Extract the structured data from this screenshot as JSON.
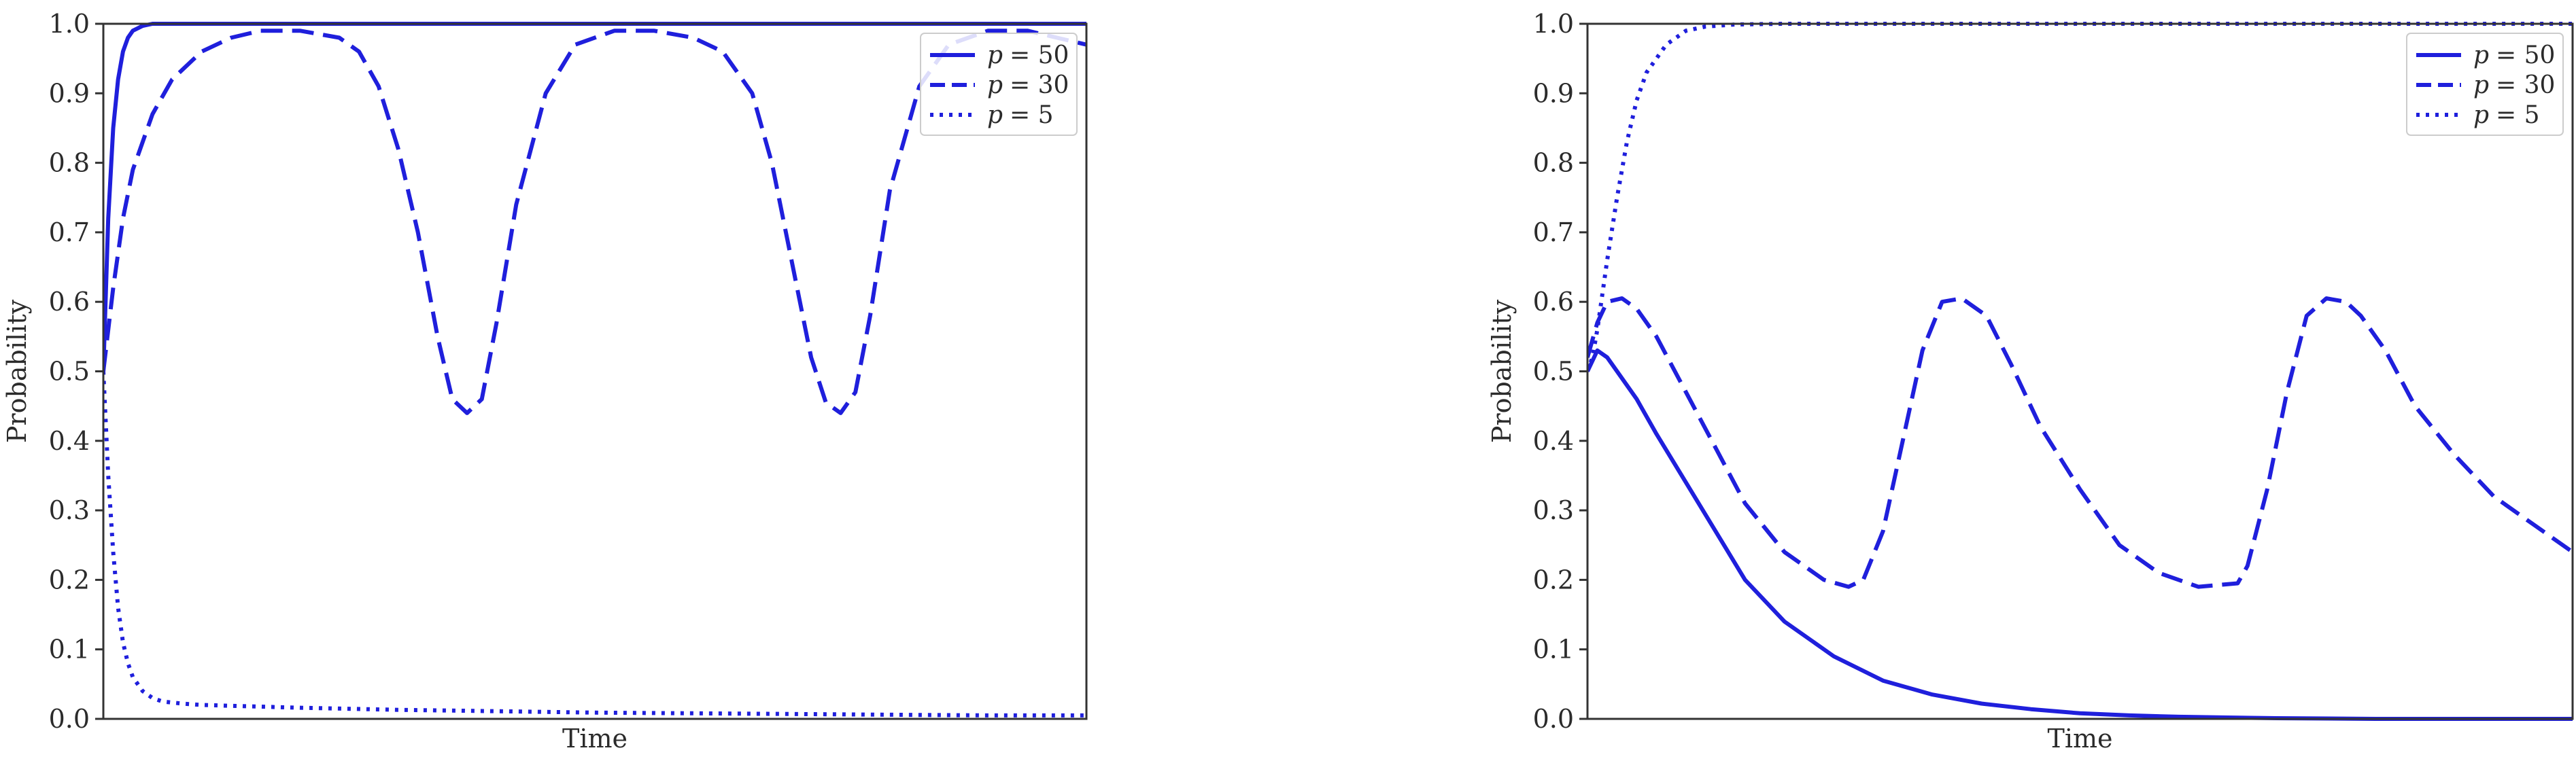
{
  "colors": {
    "line": "#1f1fdc",
    "axes": "#333333",
    "legend_border": "#cccccc"
  },
  "chart_data": [
    {
      "type": "line",
      "title": "",
      "xlabel": "Time",
      "ylabel": "Probability",
      "xlim": [
        0,
        1
      ],
      "ylim": [
        0.0,
        1.0
      ],
      "yticks": [
        "0.0",
        "0.1",
        "0.2",
        "0.3",
        "0.4",
        "0.5",
        "0.6",
        "0.7",
        "0.8",
        "0.9",
        "1.0"
      ],
      "xticks": [],
      "grid": false,
      "legend": "top-right",
      "series": [
        {
          "name": "p = 50",
          "name_var": "p",
          "name_value": "= 50",
          "style": "solid",
          "x": [
            0,
            0.005,
            0.01,
            0.015,
            0.02,
            0.025,
            0.03,
            0.04,
            0.05,
            0.06,
            1.0
          ],
          "y": [
            0.5,
            0.72,
            0.85,
            0.92,
            0.96,
            0.98,
            0.99,
            0.997,
            1.0,
            1.0,
            1.0
          ]
        },
        {
          "name": "p = 30",
          "name_var": "p",
          "name_value": "= 30",
          "style": "dashed",
          "x": [
            0,
            0.01,
            0.02,
            0.03,
            0.05,
            0.07,
            0.1,
            0.13,
            0.16,
            0.2,
            0.24,
            0.26,
            0.28,
            0.3,
            0.32,
            0.34,
            0.355,
            0.37,
            0.385,
            0.4,
            0.42,
            0.45,
            0.48,
            0.52,
            0.56,
            0.6,
            0.63,
            0.66,
            0.68,
            0.7,
            0.72,
            0.735,
            0.75,
            0.765,
            0.78,
            0.8,
            0.83,
            0.86,
            0.9,
            0.94,
            0.97,
            1.0
          ],
          "y": [
            0.5,
            0.62,
            0.72,
            0.79,
            0.87,
            0.92,
            0.96,
            0.98,
            0.99,
            0.99,
            0.98,
            0.96,
            0.91,
            0.82,
            0.7,
            0.55,
            0.46,
            0.44,
            0.46,
            0.57,
            0.74,
            0.9,
            0.97,
            0.99,
            0.99,
            0.98,
            0.96,
            0.9,
            0.8,
            0.66,
            0.52,
            0.455,
            0.44,
            0.47,
            0.58,
            0.76,
            0.91,
            0.97,
            0.99,
            0.99,
            0.98,
            0.97
          ]
        },
        {
          "name": "p = 5",
          "name_var": "p",
          "name_value": "= 5",
          "style": "dotted",
          "x": [
            0,
            0.005,
            0.01,
            0.015,
            0.02,
            0.025,
            0.03,
            0.04,
            0.05,
            0.06,
            0.08,
            0.1,
            0.15,
            0.2,
            0.3,
            0.4,
            0.5,
            0.6,
            0.7,
            0.8,
            0.9,
            1.0
          ],
          "y": [
            0.5,
            0.35,
            0.24,
            0.16,
            0.11,
            0.08,
            0.06,
            0.04,
            0.03,
            0.025,
            0.022,
            0.02,
            0.018,
            0.016,
            0.013,
            0.011,
            0.009,
            0.008,
            0.007,
            0.006,
            0.005,
            0.005
          ]
        }
      ]
    },
    {
      "type": "line",
      "title": "",
      "xlabel": "Time",
      "ylabel": "Probability",
      "xlim": [
        0,
        1
      ],
      "ylim": [
        0.0,
        1.0
      ],
      "yticks": [
        "0.0",
        "0.1",
        "0.2",
        "0.3",
        "0.4",
        "0.5",
        "0.6",
        "0.7",
        "0.8",
        "0.9",
        "1.0"
      ],
      "xticks": [],
      "grid": false,
      "legend": "top-right",
      "series": [
        {
          "name": "p = 50",
          "name_var": "p",
          "name_value": "= 50",
          "style": "solid",
          "x": [
            0,
            0.01,
            0.02,
            0.03,
            0.05,
            0.07,
            0.1,
            0.13,
            0.16,
            0.2,
            0.25,
            0.3,
            0.35,
            0.4,
            0.45,
            0.5,
            0.55,
            0.6,
            0.65,
            0.7,
            0.8,
            0.9,
            1.0
          ],
          "y": [
            0.5,
            0.53,
            0.52,
            0.5,
            0.46,
            0.41,
            0.34,
            0.27,
            0.2,
            0.14,
            0.09,
            0.055,
            0.035,
            0.022,
            0.014,
            0.008,
            0.005,
            0.003,
            0.002,
            0.001,
            0.0,
            0.0,
            0.0
          ]
        },
        {
          "name": "p = 30",
          "name_var": "p",
          "name_value": "= 30",
          "style": "dashed",
          "x": [
            0,
            0.01,
            0.02,
            0.035,
            0.05,
            0.07,
            0.1,
            0.13,
            0.16,
            0.2,
            0.24,
            0.265,
            0.28,
            0.3,
            0.32,
            0.34,
            0.36,
            0.38,
            0.405,
            0.43,
            0.46,
            0.5,
            0.54,
            0.58,
            0.62,
            0.66,
            0.67,
            0.69,
            0.71,
            0.73,
            0.75,
            0.77,
            0.785,
            0.81,
            0.84,
            0.88,
            0.92,
            0.96,
            1.0
          ],
          "y": [
            0.52,
            0.57,
            0.6,
            0.605,
            0.59,
            0.55,
            0.47,
            0.39,
            0.31,
            0.24,
            0.2,
            0.19,
            0.2,
            0.27,
            0.4,
            0.53,
            0.6,
            0.605,
            0.58,
            0.51,
            0.42,
            0.33,
            0.25,
            0.21,
            0.19,
            0.195,
            0.22,
            0.33,
            0.47,
            0.58,
            0.605,
            0.6,
            0.58,
            0.53,
            0.45,
            0.38,
            0.32,
            0.28,
            0.24
          ]
        },
        {
          "name": "p = 5",
          "name_var": "p",
          "name_value": "= 5",
          "style": "dotted",
          "x": [
            0,
            0.005,
            0.01,
            0.02,
            0.03,
            0.04,
            0.05,
            0.06,
            0.08,
            0.1,
            0.12,
            0.15,
            0.2,
            0.3,
            0.5,
            0.75,
            1.0
          ],
          "y": [
            0.5,
            0.52,
            0.56,
            0.66,
            0.75,
            0.83,
            0.89,
            0.93,
            0.97,
            0.99,
            0.996,
            0.999,
            1.0,
            1.0,
            1.0,
            1.0,
            1.0
          ]
        }
      ]
    }
  ]
}
